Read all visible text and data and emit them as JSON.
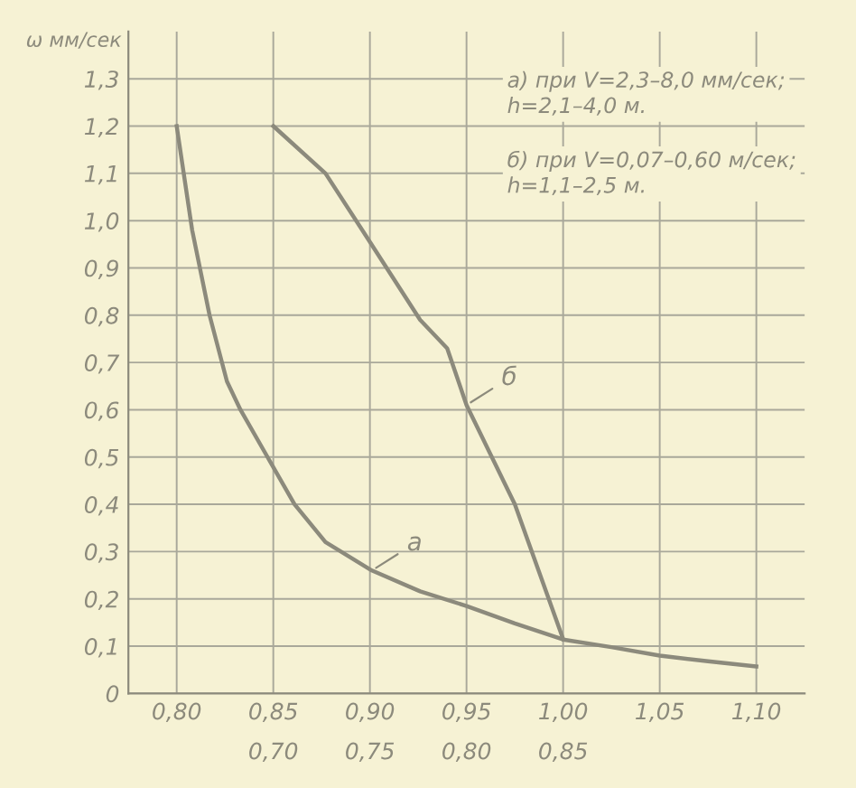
{
  "chart_data": {
    "type": "line",
    "ylabel": "ω мм/сек",
    "annotations": [
      "а) при V=2,3–8,0 мм/сек;\nh=2,1–4,0 м.",
      "б) при V=0,07–0,60 м/сек;\nh=1,1–2,5 м."
    ],
    "series": [
      {
        "name": "а",
        "color": "#8c8a7c",
        "x": [
          0.8,
          0.808,
          0.817,
          0.826,
          0.833,
          0.847,
          0.861,
          0.877,
          0.901,
          0.926,
          0.95,
          0.975,
          1.0,
          1.025,
          1.05,
          1.075,
          1.1
        ],
        "values": [
          1.2,
          0.98,
          0.8,
          0.66,
          0.6,
          0.5,
          0.4,
          0.32,
          0.26,
          0.216,
          0.185,
          0.148,
          0.114,
          0.098,
          0.08,
          0.068,
          0.057
        ]
      },
      {
        "name": "б",
        "color": "#8c8a7c",
        "x": [
          0.85,
          0.877,
          0.9,
          0.926,
          0.94,
          0.95,
          0.975,
          1.0
        ],
        "values": [
          1.2,
          1.1,
          0.955,
          0.79,
          0.73,
          0.61,
          0.4,
          0.115
        ]
      }
    ],
    "xlim": [
      0.775,
      1.125
    ],
    "xticks": [
      {
        "value": 0.8,
        "label": "0,80"
      },
      {
        "value": 0.85,
        "label": "0,85"
      },
      {
        "value": 0.9,
        "label": "0,90"
      },
      {
        "value": 0.95,
        "label": "0,95"
      },
      {
        "value": 1.0,
        "label": "1,00"
      },
      {
        "value": 1.05,
        "label": "1,05"
      },
      {
        "value": 1.1,
        "label": "1,10"
      }
    ],
    "x2lim": [
      0.625,
      0.975
    ],
    "x2ticks": [
      {
        "value": 0.7,
        "label": "0,70"
      },
      {
        "value": 0.75,
        "label": "0,75"
      },
      {
        "value": 0.8,
        "label": "0,80"
      },
      {
        "value": 0.85,
        "label": "0,85"
      }
    ],
    "ylim": [
      0,
      1.4
    ],
    "yticks": [
      0,
      {
        "value": 0.1,
        "label": "0,1"
      },
      {
        "value": 0.2,
        "label": "0,2"
      },
      {
        "value": 0.3,
        "label": "0,3"
      },
      {
        "value": 0.4,
        "label": "0,4"
      },
      {
        "value": 0.5,
        "label": "0,5"
      },
      {
        "value": 0.6,
        "label": "0,6"
      },
      {
        "value": 0.7,
        "label": "0,7"
      },
      {
        "value": 0.8,
        "label": "0,8"
      },
      {
        "value": 0.9,
        "label": "0,9"
      },
      {
        "value": 1.0,
        "label": "1,0"
      },
      {
        "value": 1.1,
        "label": "1,1"
      },
      {
        "value": 1.2,
        "label": "1,2"
      },
      {
        "value": 1.3,
        "label": "1,3"
      }
    ],
    "grid": true,
    "marker": "none",
    "line_style": "solid"
  }
}
